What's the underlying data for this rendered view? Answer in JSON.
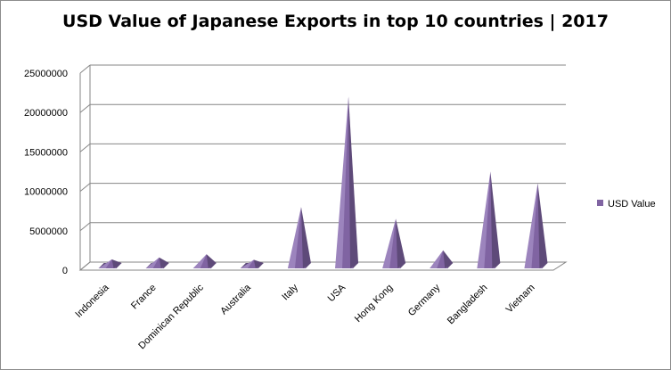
{
  "chart_data": {
    "type": "bar",
    "title": "USD Value of Japanese Exports in top 10 countries | 2017",
    "xlabel": "",
    "ylabel": "",
    "categories": [
      "Indonesia",
      "France",
      "Dominican Republic",
      "Australia",
      "Italy",
      "USA",
      "Hong Kong",
      "Germany",
      "Bangladesh",
      "Vietnam"
    ],
    "series": [
      {
        "name": "USD Value",
        "values": [
          350000,
          600000,
          1000000,
          300000,
          7000000,
          21000000,
          5500000,
          1500000,
          11500000,
          10000000
        ]
      }
    ],
    "yticks": [
      "0",
      "5000000",
      "10000000",
      "15000000",
      "20000000",
      "25000000"
    ],
    "ylim": [
      0,
      25000000
    ],
    "grid": true,
    "legend": "right",
    "style": "3d-cone",
    "colors": {
      "face": "#8064A2",
      "dark": "#5E4A79",
      "light": "#9C84BD"
    }
  }
}
